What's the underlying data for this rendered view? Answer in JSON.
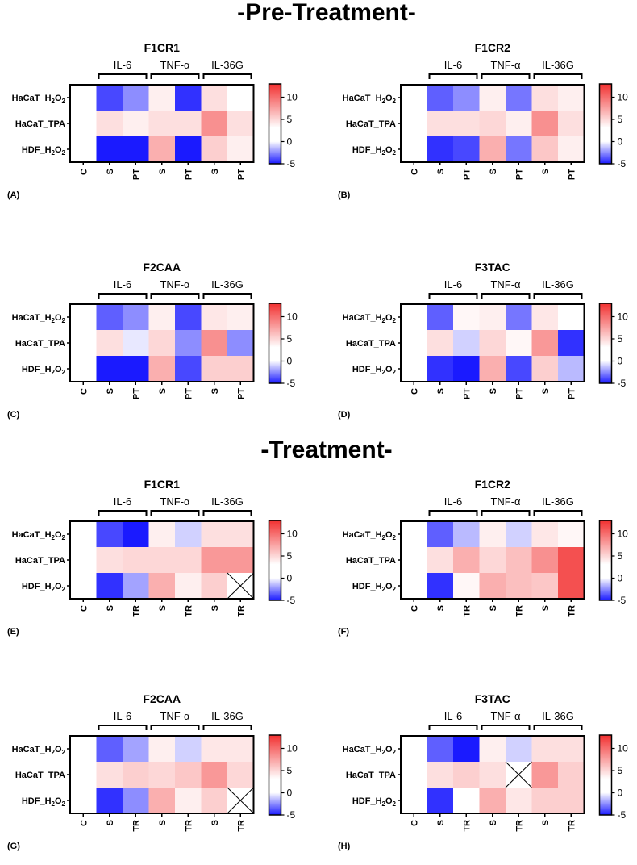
{
  "sections": [
    {
      "title": "-Pre-Treatment-"
    },
    {
      "title": "-Treatment-"
    }
  ],
  "scale": {
    "min": -5,
    "max": 13,
    "ticks": [
      "10",
      "5",
      "0",
      "-5"
    ],
    "tick_values": [
      10,
      5,
      0,
      -5
    ],
    "low_color": "#1a1aff",
    "mid_color": "#ffffff",
    "high_color": "#f23030"
  },
  "rows": [
    "HaCaT_H2O2",
    "HaCaT_TPA",
    "HDF_H2O2"
  ],
  "groups": [
    "IL-6",
    "TNF-α",
    "IL-36G"
  ],
  "chart_data": [
    {
      "type": "heatmap",
      "panel": "(A)",
      "title": "F1CR1",
      "columns": [
        "C",
        "S",
        "PT",
        "S",
        "PT",
        "S",
        "PT"
      ],
      "values": [
        [
          0,
          -4,
          -2.5,
          1,
          -4.5,
          2,
          0
        ],
        [
          0,
          2,
          1,
          2,
          2,
          7,
          2
        ],
        [
          0,
          -5,
          -13,
          5,
          -5,
          3,
          1
        ]
      ]
    },
    {
      "type": "heatmap",
      "panel": "(B)",
      "title": "F1CR2",
      "columns": [
        "C",
        "S",
        "PT",
        "S",
        "PT",
        "S",
        "PT"
      ],
      "values": [
        [
          0,
          -3.5,
          -2.5,
          1,
          -3,
          2,
          1
        ],
        [
          0,
          2,
          2,
          2.5,
          1,
          7,
          2
        ],
        [
          0,
          -4.5,
          -4,
          5,
          -3,
          3.5,
          1
        ]
      ]
    },
    {
      "type": "heatmap",
      "panel": "(C)",
      "title": "F2CAA",
      "columns": [
        "C",
        "S",
        "PT",
        "S",
        "PT",
        "S",
        "PT"
      ],
      "values": [
        [
          0,
          -3.5,
          -2.5,
          1,
          -4,
          1.5,
          1
        ],
        [
          0,
          2,
          -0.5,
          2.5,
          -2.5,
          7,
          -2.5
        ],
        [
          0,
          -5,
          -5.5,
          5,
          -4,
          3,
          3
        ]
      ]
    },
    {
      "type": "heatmap",
      "panel": "(D)",
      "title": "F3TAC",
      "columns": [
        "C",
        "S",
        "PT",
        "S",
        "PT",
        "S",
        "PT"
      ],
      "values": [
        [
          0,
          -3.5,
          0.5,
          1,
          -3,
          1.5,
          0
        ],
        [
          0,
          2,
          -1,
          2.5,
          0.5,
          6.5,
          -4.5
        ],
        [
          0,
          -4.5,
          -8,
          5,
          -4,
          3,
          -1.5
        ]
      ]
    },
    {
      "type": "heatmap",
      "panel": "(E)",
      "title": "F1CR1",
      "columns": [
        "C",
        "S",
        "TR",
        "S",
        "TR",
        "S",
        "TR"
      ],
      "values": [
        [
          0,
          -4,
          -6,
          1,
          -1,
          2,
          2
        ],
        [
          0,
          2,
          2.5,
          2.5,
          2.5,
          6.5,
          6.5
        ],
        [
          0,
          -4.5,
          -2,
          5,
          1,
          3,
          null
        ]
      ]
    },
    {
      "type": "heatmap",
      "panel": "(F)",
      "title": "F1CR2",
      "columns": [
        "C",
        "S",
        "TR",
        "S",
        "TR",
        "S",
        "TR"
      ],
      "values": [
        [
          0,
          -3.5,
          -1.5,
          1,
          -1,
          1.5,
          0.5
        ],
        [
          0,
          2,
          5,
          2.5,
          4,
          7,
          11
        ],
        [
          0,
          -4.5,
          0.5,
          5,
          4,
          3.5,
          11
        ]
      ]
    },
    {
      "type": "heatmap",
      "panel": "(G)",
      "title": "F2CAA",
      "columns": [
        "C",
        "S",
        "TR",
        "S",
        "TR",
        "S",
        "TR"
      ],
      "values": [
        [
          0,
          -3.5,
          -2,
          1,
          -1,
          1.5,
          1.5
        ],
        [
          0,
          2,
          3,
          2.5,
          3.5,
          6.5,
          2.5
        ],
        [
          0,
          -4.5,
          -2.5,
          5,
          1,
          3,
          null
        ]
      ]
    },
    {
      "type": "heatmap",
      "panel": "(H)",
      "title": "F3TAC",
      "columns": [
        "C",
        "S",
        "TR",
        "S",
        "TR",
        "S",
        "TR"
      ],
      "values": [
        [
          0,
          -3.5,
          -5,
          1,
          -1,
          2,
          2
        ],
        [
          0,
          2,
          3,
          2,
          null,
          6.5,
          3
        ],
        [
          0,
          -4.5,
          0,
          5,
          1.5,
          3,
          3
        ]
      ]
    }
  ]
}
